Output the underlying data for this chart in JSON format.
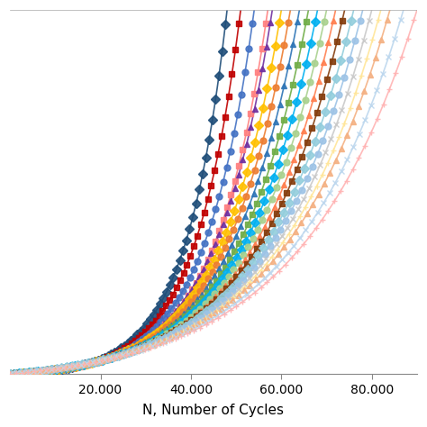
{
  "xlabel": "N, Number of Cycles",
  "xlim": [
    0,
    90000
  ],
  "ylim": [
    0,
    1.0
  ],
  "xticks": [
    20000,
    40000,
    60000,
    80000
  ],
  "xtick_labels": [
    "20.000",
    "40.000",
    "60.000",
    "80.000"
  ],
  "background_color": "#ffffff",
  "curves": [
    {
      "color": "#1f4e79",
      "marker": "D",
      "rate": 0.00011,
      "N_end": 48000
    },
    {
      "color": "#c00000",
      "marker": "s",
      "rate": 0.0001,
      "N_end": 51000
    },
    {
      "color": "#4472c4",
      "marker": "o",
      "rate": 9.2e-05,
      "N_end": 54000
    },
    {
      "color": "#ff8080",
      "marker": "s",
      "rate": 8.6e-05,
      "N_end": 57000
    },
    {
      "color": "#7030a0",
      "marker": "^",
      "rate": 8e-05,
      "N_end": 58000
    },
    {
      "color": "#ffc000",
      "marker": "D",
      "rate": 7.6e-05,
      "N_end": 60000
    },
    {
      "color": "#ed7d31",
      "marker": "o",
      "rate": 7.2e-05,
      "N_end": 62000
    },
    {
      "color": "#2e75b6",
      "marker": "^",
      "rate": 6.8e-05,
      "N_end": 64000
    },
    {
      "color": "#70ad47",
      "marker": "s",
      "rate": 6.5e-05,
      "N_end": 66000
    },
    {
      "color": "#00b0f0",
      "marker": "D",
      "rate": 6.2e-05,
      "N_end": 68000
    },
    {
      "color": "#a9d18e",
      "marker": "o",
      "rate": 5.9e-05,
      "N_end": 70000
    },
    {
      "color": "#ff7f50",
      "marker": "^",
      "rate": 5.6e-05,
      "N_end": 72000
    },
    {
      "color": "#843c0c",
      "marker": "s",
      "rate": 5.3e-05,
      "N_end": 74000
    },
    {
      "color": "#92cddc",
      "marker": "D",
      "rate": 5.1e-05,
      "N_end": 76000
    },
    {
      "color": "#9dc3e6",
      "marker": "o",
      "rate": 4.9e-05,
      "N_end": 78000
    },
    {
      "color": "#c9c9c9",
      "marker": "x",
      "rate": 4.7e-05,
      "N_end": 80000
    },
    {
      "color": "#ffe699",
      "marker": "+",
      "rate": 4.5e-05,
      "N_end": 82000
    },
    {
      "color": "#f4b183",
      "marker": "^",
      "rate": 4.3e-05,
      "N_end": 84000
    },
    {
      "color": "#bdd7ee",
      "marker": "x",
      "rate": 4.1e-05,
      "N_end": 87000
    },
    {
      "color": "#ffb3b3",
      "marker": "+",
      "rate": 3.9e-05,
      "N_end": 90000
    }
  ]
}
